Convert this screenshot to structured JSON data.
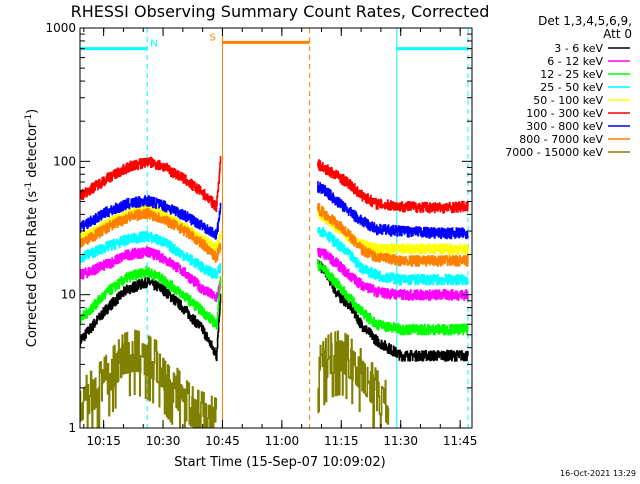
{
  "chart_data": {
    "type": "line",
    "title": "RHESSI Observing Summary Count Rates, Corrected",
    "xlabel": "Start Time (15-Sep-07 10:09:02)",
    "ylabel": "Corrected Count Rate (s-1 detector-1)",
    "ylabel_parts": {
      "a": "Corrected Count Rate (s",
      "sup1": "-1",
      "b": " detector",
      "sup2": "-1",
      "c": ")"
    },
    "yscale": "log",
    "ylim": [
      1,
      1000
    ],
    "xlim": [
      "10:09:02",
      "11:48:00"
    ],
    "x_ticks": [
      "10:15",
      "10:30",
      "10:45",
      "11:00",
      "11:15",
      "11:30",
      "11:45"
    ],
    "y_ticks": [
      "1",
      "10",
      "100",
      "1000"
    ],
    "legend_header": [
      "Det 1,3,4,5,6,9,",
      "Att 0"
    ],
    "legend_position": "top-right, outside plot",
    "timestamp": "16-Oct-2021 13:29",
    "grid": false,
    "data_gap": [
      "10:46:00",
      "11:07:00"
    ],
    "series": [
      {
        "name": "3 - 6 keV",
        "color": "#000000",
        "x": [
          "10:09:02",
          "10:16:00",
          "10:21:00",
          "10:26:00",
          "10:30:00",
          "10:35:00",
          "10:40:00",
          "10:43:30",
          "10:44:30",
          "11:09:00",
          "11:11:00",
          "11:14:00",
          "11:17:00",
          "11:20:00",
          "11:24:00",
          "11:30:00",
          "11:40:00",
          "11:47:00"
        ],
        "values": [
          4.5,
          8,
          11,
          12.5,
          11,
          8,
          5.5,
          3.5,
          10,
          17,
          15,
          10,
          8.5,
          6,
          4.5,
          3.5,
          3.5,
          3.5
        ]
      },
      {
        "name": "6 - 12 keV",
        "color": "#ff00ff",
        "x": [
          "10:09:02",
          "10:16:00",
          "10:21:00",
          "10:26:00",
          "10:30:00",
          "10:35:00",
          "10:40:00",
          "10:43:30",
          "10:44:30",
          "11:09:00",
          "11:11:00",
          "11:14:00",
          "11:17:00",
          "11:20:00",
          "11:24:00",
          "11:30:00",
          "11:40:00",
          "11:47:00"
        ],
        "values": [
          14,
          17,
          20,
          21,
          19,
          15,
          11,
          9.5,
          12,
          21,
          20,
          17,
          14,
          12,
          10.5,
          10,
          10,
          10
        ]
      },
      {
        "name": "12 - 25 keV",
        "color": "#00ff00",
        "x": [
          "10:09:02",
          "10:16:00",
          "10:21:00",
          "10:26:00",
          "10:30:00",
          "10:35:00",
          "10:40:00",
          "10:43:30",
          "10:44:30",
          "11:09:00",
          "11:11:00",
          "11:14:00",
          "11:17:00",
          "11:20:00",
          "11:24:00",
          "11:30:00",
          "11:40:00",
          "11:47:00"
        ],
        "values": [
          6.5,
          10.5,
          13.5,
          15,
          13,
          10,
          7.5,
          6,
          13,
          17,
          15,
          12,
          9.5,
          7.5,
          6,
          5.5,
          5.5,
          5.5
        ]
      },
      {
        "name": "25 - 50 keV",
        "color": "#00ffff",
        "x": [
          "10:09:02",
          "10:16:00",
          "10:21:00",
          "10:26:00",
          "10:30:00",
          "10:35:00",
          "10:40:00",
          "10:43:30",
          "10:44:30",
          "11:09:00",
          "11:11:00",
          "11:14:00",
          "11:17:00",
          "11:20:00",
          "11:24:00",
          "11:30:00",
          "11:40:00",
          "11:47:00"
        ],
        "values": [
          19,
          23,
          26,
          27.5,
          25,
          20,
          16,
          14,
          16,
          31,
          29,
          24,
          20,
          16,
          14,
          13,
          13,
          13
        ]
      },
      {
        "name": "50 - 100 keV",
        "color": "#ffff00",
        "x": [
          "10:09:02",
          "10:16:00",
          "10:21:00",
          "10:26:00",
          "10:30:00",
          "10:35:00",
          "10:40:00",
          "10:43:30",
          "10:44:30",
          "11:09:00",
          "11:11:00",
          "11:14:00",
          "11:17:00",
          "11:20:00",
          "11:24:00",
          "11:30:00",
          "11:40:00",
          "11:47:00"
        ],
        "values": [
          26,
          34,
          40,
          44,
          40,
          33,
          26,
          22,
          28,
          42,
          38,
          32,
          27,
          24,
          22,
          22,
          22,
          22
        ]
      },
      {
        "name": "100 - 300 keV",
        "color": "#ff0000",
        "x": [
          "10:09:02",
          "10:16:00",
          "10:21:00",
          "10:26:00",
          "10:30:00",
          "10:35:00",
          "10:40:00",
          "10:43:30",
          "10:44:30",
          "11:09:00",
          "11:11:00",
          "11:14:00",
          "11:17:00",
          "11:20:00",
          "11:24:00",
          "11:30:00",
          "11:40:00",
          "11:47:00"
        ],
        "values": [
          55,
          75,
          90,
          100,
          92,
          75,
          58,
          46,
          105,
          95,
          88,
          78,
          68,
          56,
          48,
          46,
          45,
          46
        ]
      },
      {
        "name": "300 - 800 keV",
        "color": "#0000ff",
        "x": [
          "10:09:02",
          "10:16:00",
          "10:21:00",
          "10:26:00",
          "10:30:00",
          "10:35:00",
          "10:40:00",
          "10:43:30",
          "10:44:30",
          "11:09:00",
          "11:11:00",
          "11:14:00",
          "11:17:00",
          "11:20:00",
          "11:24:00",
          "11:30:00",
          "11:40:00",
          "11:47:00"
        ],
        "values": [
          32,
          42,
          48,
          51,
          47,
          40,
          33,
          28,
          45,
          65,
          60,
          50,
          42,
          36,
          31,
          30,
          29,
          29
        ]
      },
      {
        "name": "800 - 7000 keV",
        "color": "#ff8000",
        "x": [
          "10:09:02",
          "10:16:00",
          "10:21:00",
          "10:26:00",
          "10:30:00",
          "10:35:00",
          "10:40:00",
          "10:43:30",
          "10:44:30",
          "11:09:00",
          "11:11:00",
          "11:14:00",
          "11:17:00",
          "11:20:00",
          "11:24:00",
          "11:30:00",
          "11:40:00",
          "11:47:00"
        ],
        "values": [
          24,
          32,
          38,
          41,
          37,
          31,
          24,
          19,
          24,
          45,
          40,
          34,
          28,
          22,
          19,
          18,
          18,
          18
        ]
      },
      {
        "name": "7000 - 15000 keV",
        "color": "#808000",
        "x": [
          "10:09:02",
          "10:13:00",
          "10:17:00",
          "10:20:00",
          "10:23:00",
          "10:26:00",
          "10:29:00",
          "10:32:00",
          "10:35:00",
          "10:38:00",
          "10:41:00",
          "10:43:30",
          "11:09:00",
          "11:12:00",
          "11:15:00",
          "11:18:00",
          "11:21:00",
          "11:24:00",
          "11:27:00"
        ],
        "values": [
          1.5,
          1.9,
          2.6,
          3.4,
          3.6,
          3.3,
          2.9,
          2.2,
          1.6,
          1.3,
          1.2,
          1.1,
          2.6,
          3.4,
          3.6,
          3.0,
          2.4,
          1.8,
          1.4
        ]
      }
    ],
    "saa_bars": [
      {
        "label": "N",
        "color": "#00ffff",
        "x": [
          "10:09:02",
          "10:26:00"
        ],
        "y": 700
      },
      {
        "label": "",
        "color": "#00ffff",
        "x": [
          "11:29:00",
          "11:47:00"
        ],
        "y": 700
      }
    ],
    "night_bars": [
      {
        "label": "S",
        "color": "#ff8000",
        "x": [
          "10:45:00",
          "11:07:00"
        ],
        "y": 780
      }
    ],
    "vertical_lines": [
      {
        "x": "10:09:02",
        "color": "#00ffff",
        "style": "solid"
      },
      {
        "x": "10:26:00",
        "color": "#00ffff",
        "style": "dashed"
      },
      {
        "x": "10:45:00",
        "color": "#ff8000",
        "style": "solid"
      },
      {
        "x": "11:07:00",
        "color": "#ff8000",
        "style": "dashed"
      },
      {
        "x": "11:29:00",
        "color": "#00ffff",
        "style": "solid"
      },
      {
        "x": "11:47:00",
        "color": "#00ffff",
        "style": "dashed"
      }
    ]
  }
}
